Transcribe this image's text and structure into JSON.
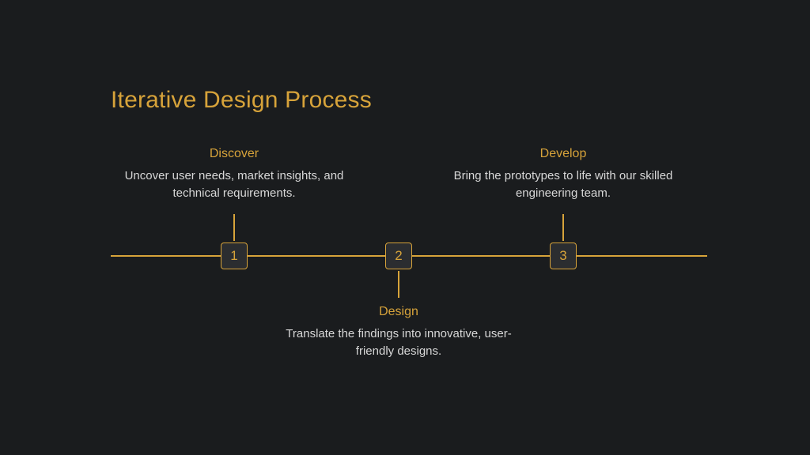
{
  "slide": {
    "background_color": "#1a1c1e",
    "accent_color": "#d7a33a",
    "text_color": "#d7d7d7",
    "node_bg_color": "#2b2d30",
    "title": "Iterative Design Process",
    "title_fontsize": 30,
    "timeline": {
      "line_color": "#d7a33a",
      "line_width": 2,
      "connector_height": 34,
      "node_size": 34,
      "steps": [
        {
          "number": "1",
          "label": "Discover",
          "desc": "Uncover user needs, market insights, and technical requirements.",
          "position": "top"
        },
        {
          "number": "2",
          "label": "Design",
          "desc": "Translate the findings into innovative, user-friendly designs.",
          "position": "bottom"
        },
        {
          "number": "3",
          "label": "Develop",
          "desc": "Bring the prototypes to life with our skilled engineering team.",
          "position": "top"
        }
      ]
    }
  }
}
